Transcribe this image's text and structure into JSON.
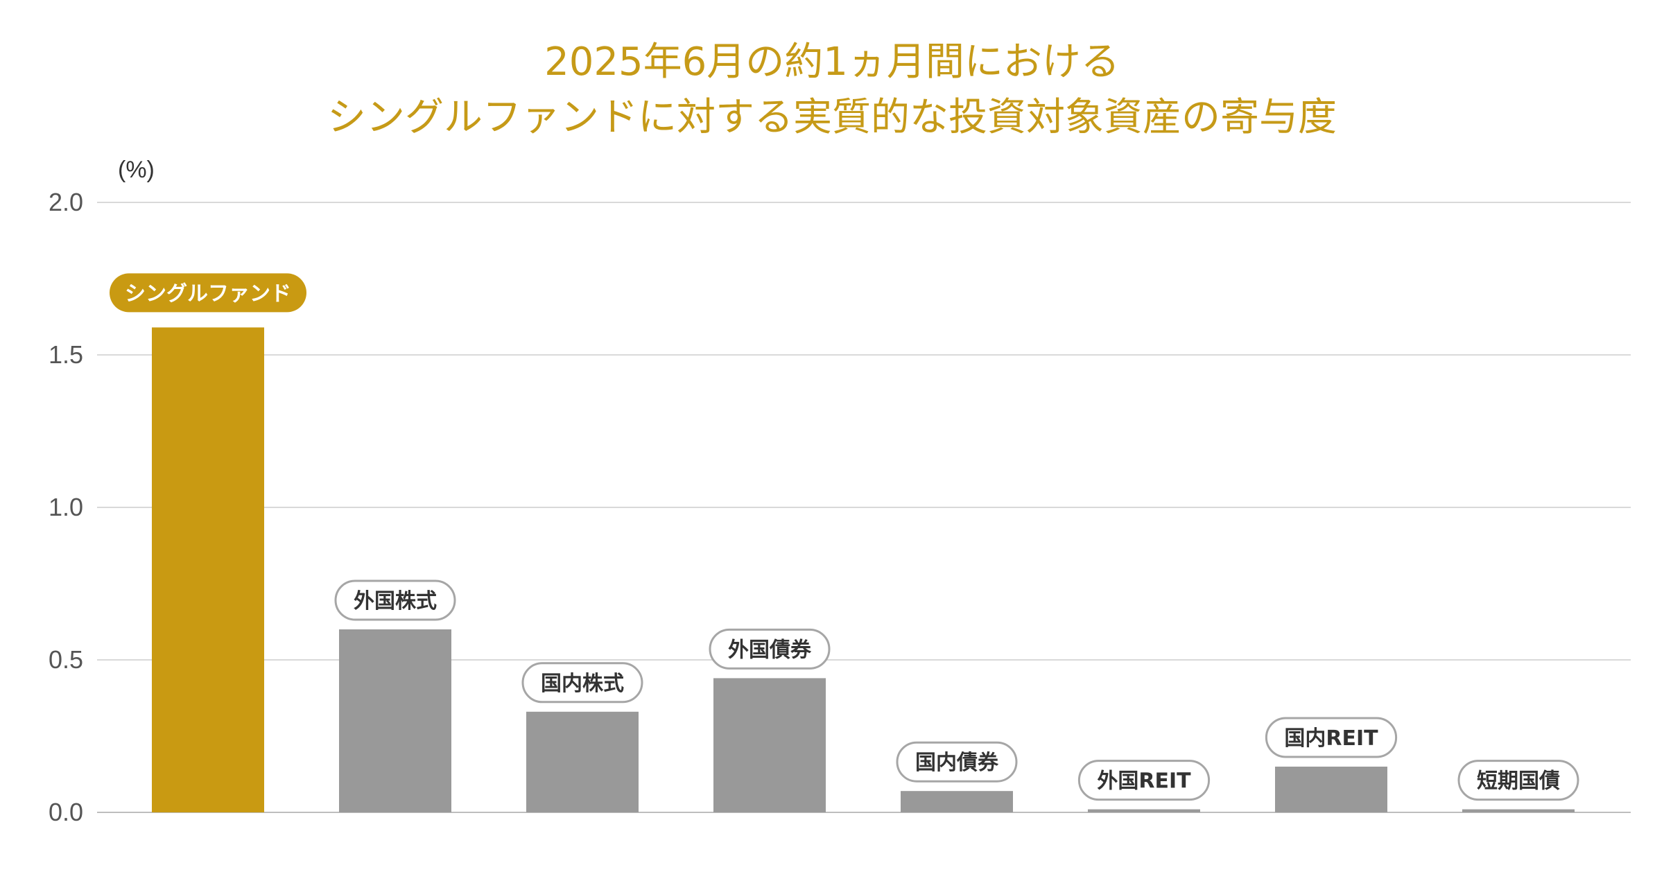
{
  "chart_data": {
    "type": "bar",
    "title_lines": [
      "2025年6月の約1ヵ月間における",
      "シングルファンドに対する実質的な投資対象資産の寄与度"
    ],
    "unit": "(%)",
    "categories": [
      "シングルファンド",
      "外国株式",
      "国内株式",
      "外国債券",
      "国内債券",
      "外国REIT",
      "国内REIT",
      "短期国債"
    ],
    "values": [
      1.59,
      0.6,
      0.33,
      0.44,
      0.07,
      0.01,
      0.15,
      0.01
    ],
    "highlight_index": 0,
    "ylim": [
      0,
      2.0
    ],
    "yticks": [
      "0.0",
      "0.5",
      "1.0",
      "1.5",
      "2.0"
    ],
    "grid": true,
    "colors": {
      "title": "#c69a17",
      "highlight": "#c99a12",
      "bar": "#999999",
      "label_border": "#a6a6a6",
      "label_text": "#333333"
    }
  }
}
